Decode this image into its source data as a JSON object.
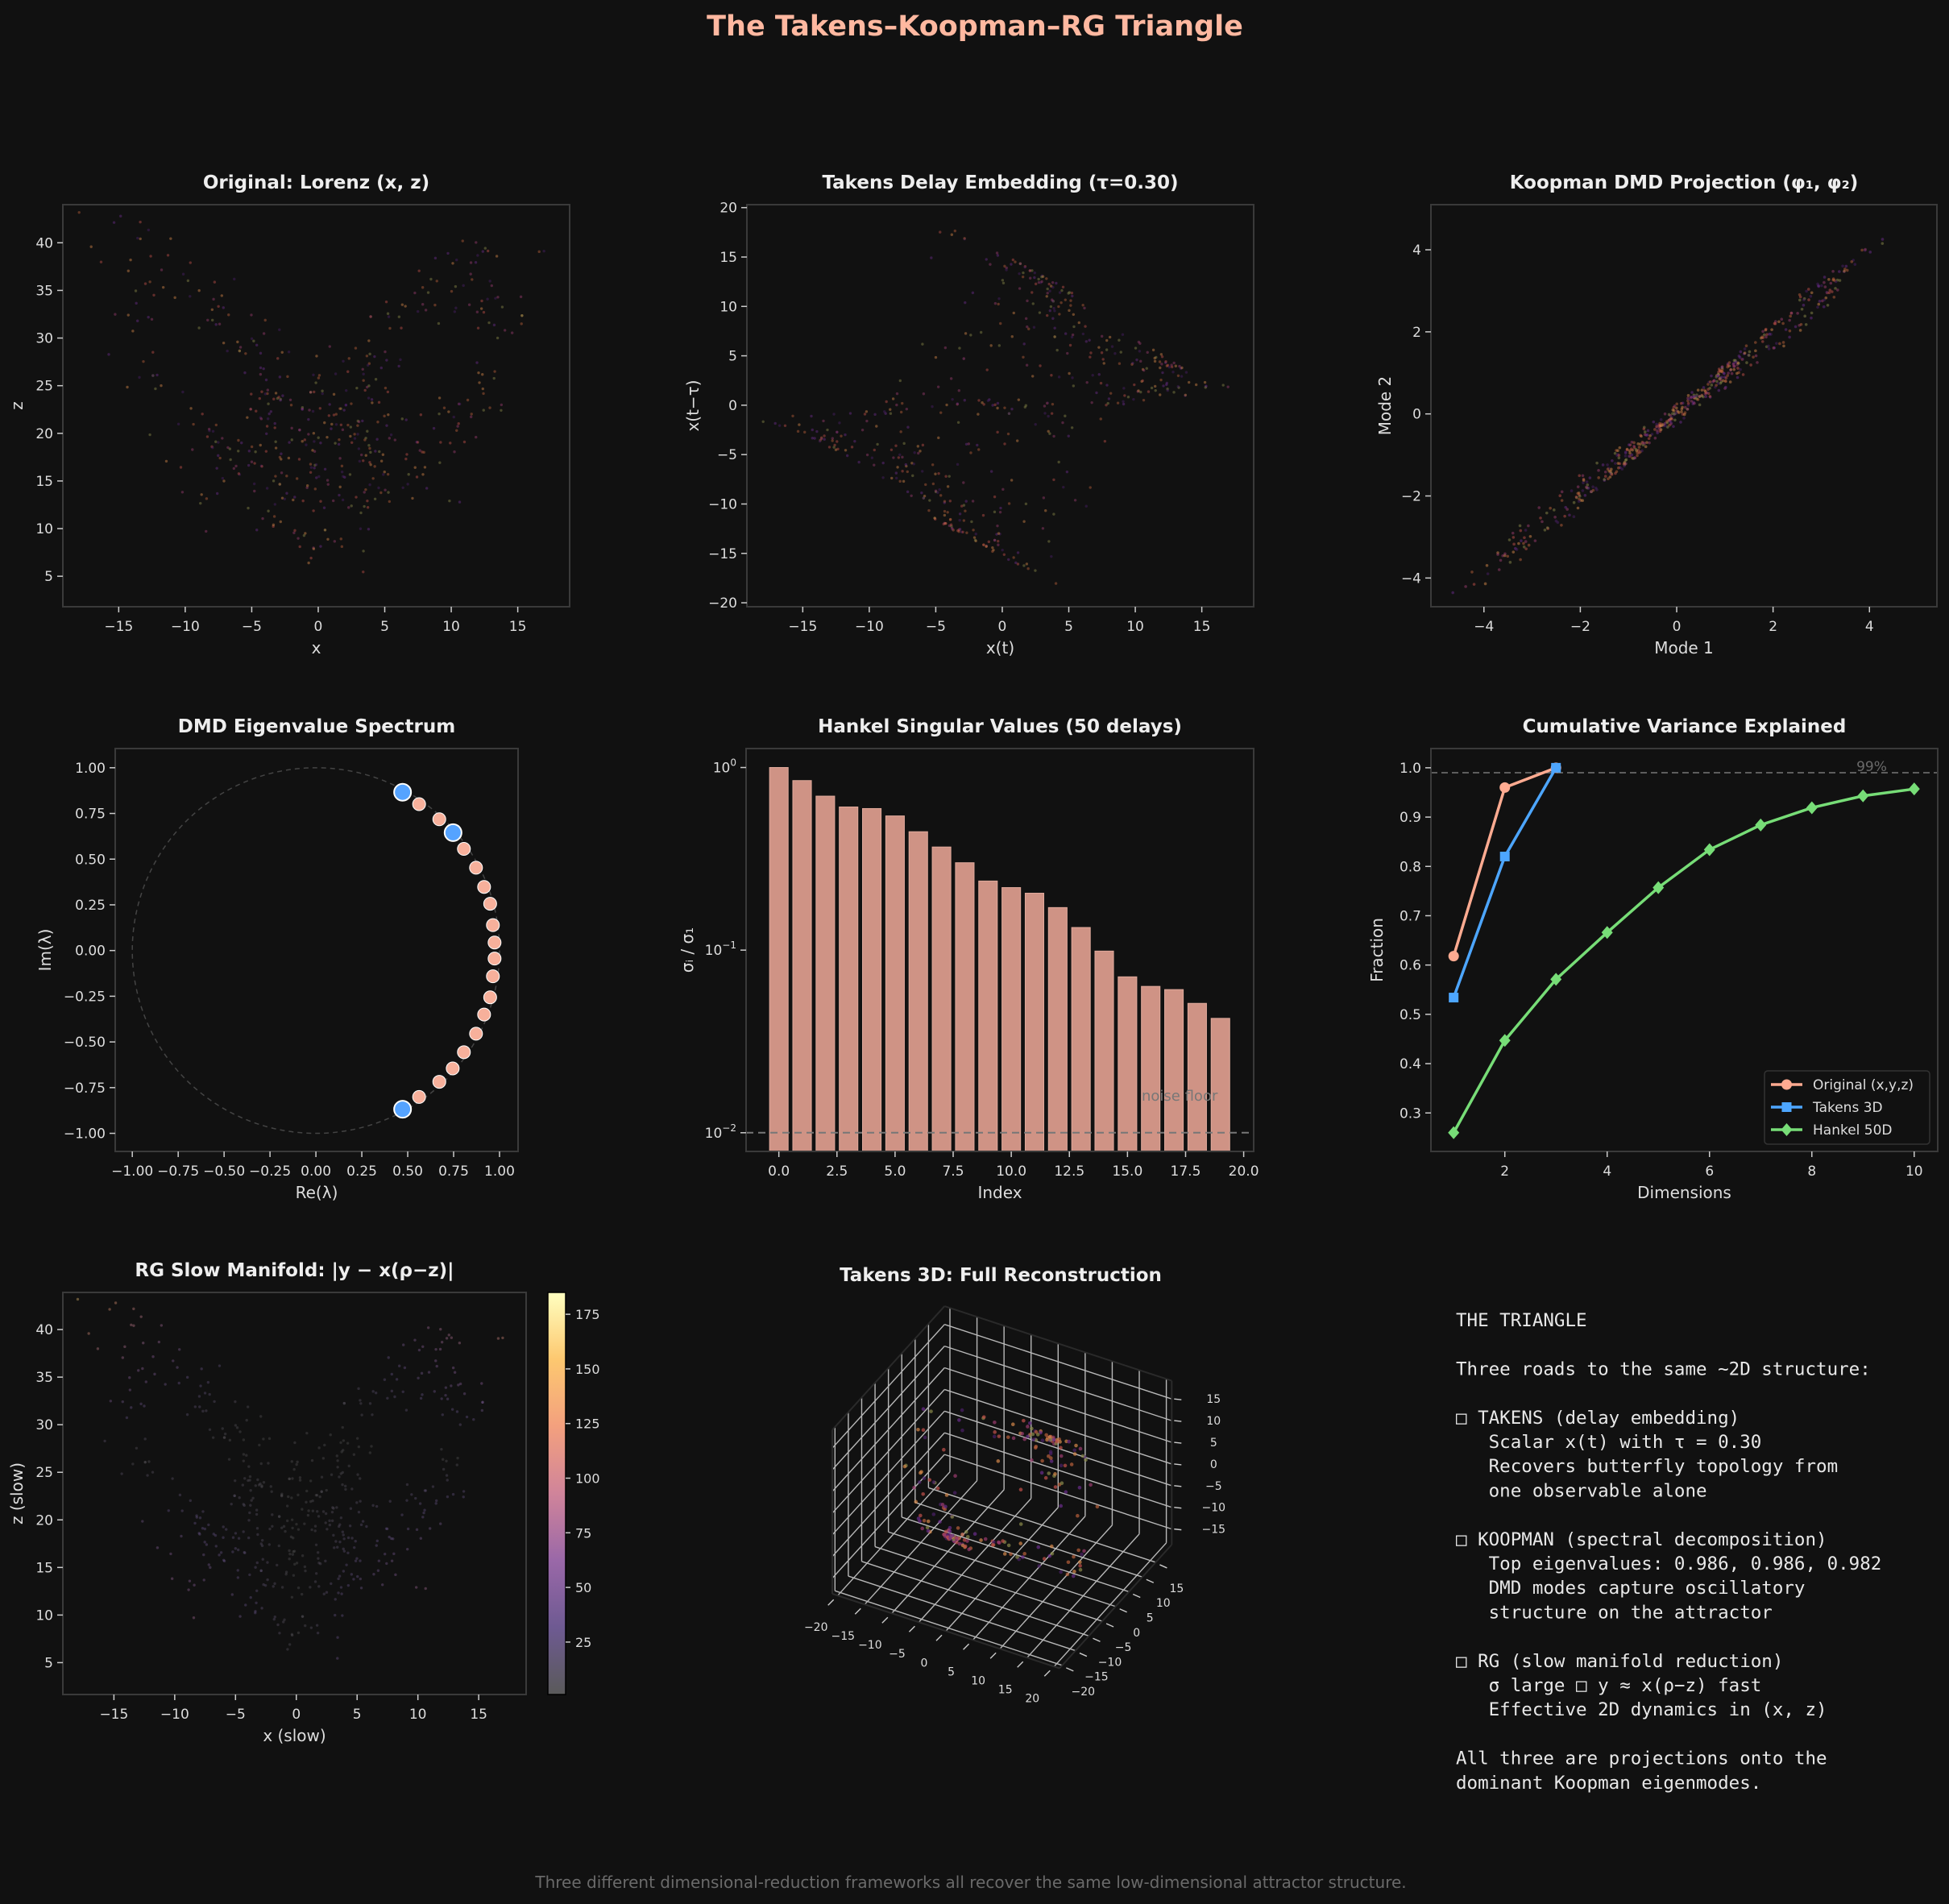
{
  "figure": {
    "title": "The Takens–Koopman–RG Triangle",
    "footer": "Three different dimensional-reduction frameworks all recover the same low-dimensional attractor structure.",
    "background": "#111111",
    "title_color": "#ffb8a0"
  },
  "chart_data": [
    {
      "id": "lorenz",
      "type": "scatter",
      "title": "Original: Lorenz (x, z)",
      "xlabel": "x",
      "ylabel": "z",
      "xlim": [
        -19.2,
        18.9
      ],
      "ylim": [
        1.8,
        44.0
      ],
      "xticks": [
        -15,
        -10,
        -5,
        0,
        5,
        10,
        15
      ],
      "xtick_labels": [
        "−15",
        "−10",
        "−5",
        "0",
        "5",
        "10",
        "15"
      ],
      "yticks": [
        5,
        10,
        15,
        20,
        25,
        30,
        35,
        40
      ],
      "ytick_labels": [
        "5",
        "10",
        "15",
        "20",
        "25",
        "30",
        "35",
        "40"
      ]
    },
    {
      "id": "takens",
      "type": "scatter",
      "title": "Takens Delay Embedding (τ=0.30)",
      "xlabel": "x(t)",
      "ylabel": "x(t−τ)",
      "xlim": [
        -19.2,
        18.9
      ],
      "ylim": [
        -20.4,
        20.3
      ],
      "xticks": [
        -15,
        -10,
        -5,
        0,
        5,
        10,
        15
      ],
      "xtick_labels": [
        "−15",
        "−10",
        "−5",
        "0",
        "5",
        "10",
        "15"
      ],
      "yticks": [
        -20,
        -15,
        -10,
        -5,
        0,
        5,
        10,
        15,
        20
      ],
      "ytick_labels": [
        "−20",
        "−15",
        "−10",
        "−5",
        "0",
        "5",
        "10",
        "15",
        "20"
      ]
    },
    {
      "id": "koopman",
      "type": "scatter",
      "title": "Koopman DMD Projection (φ₁, φ₂)",
      "xlabel": "Mode 1",
      "ylabel": "Mode 2",
      "xlim": [
        -5.1,
        5.4
      ],
      "ylim": [
        -4.7,
        5.1
      ],
      "xticks": [
        -4,
        -2,
        0,
        2,
        4
      ],
      "xtick_labels": [
        "−4",
        "−2",
        "0",
        "2",
        "4"
      ],
      "yticks": [
        -4,
        -2,
        0,
        2,
        4
      ],
      "ytick_labels": [
        "−4",
        "−2",
        "0",
        "2",
        "4"
      ]
    },
    {
      "id": "dmd",
      "type": "scatter",
      "title": "DMD Eigenvalue Spectrum",
      "xlabel": "Re(λ)",
      "ylabel": "Im(λ)",
      "xlim": [
        -1.093,
        1.101
      ],
      "ylim": [
        -1.099,
        1.105
      ],
      "xticks": [
        -1,
        -0.75,
        -0.5,
        -0.25,
        0,
        0.25,
        0.5,
        0.75,
        1
      ],
      "xtick_labels": [
        "−1.00",
        "−0.75",
        "−0.50",
        "−0.25",
        "0.00",
        "0.25",
        "0.50",
        "0.75",
        "1.00"
      ],
      "yticks": [
        -1,
        -0.75,
        -0.5,
        -0.25,
        0,
        0.25,
        0.5,
        0.75,
        1
      ],
      "ytick_labels": [
        "−1.00",
        "−0.75",
        "−0.50",
        "−0.25",
        "0.00",
        "0.25",
        "0.50",
        "0.75",
        "1.00"
      ],
      "unit_circle": true,
      "eigenvalues": [
        [
          0.562,
          0.801
        ],
        [
          0.672,
          0.718
        ],
        [
          0.806,
          0.556
        ],
        [
          0.872,
          0.453
        ],
        [
          0.916,
          0.348
        ],
        [
          0.949,
          0.256
        ],
        [
          0.964,
          0.139
        ],
        [
          0.973,
          0.044
        ],
        [
          0.973,
          -0.044
        ],
        [
          0.964,
          -0.141
        ],
        [
          0.949,
          -0.256
        ],
        [
          0.916,
          -0.35
        ],
        [
          0.872,
          -0.455
        ],
        [
          0.806,
          -0.556
        ],
        [
          0.745,
          -0.645
        ],
        [
          0.672,
          -0.718
        ],
        [
          0.562,
          -0.801
        ]
      ],
      "highlighted": [
        [
          0.472,
          0.866
        ],
        [
          0.747,
          0.645
        ],
        [
          0.472,
          -0.868
        ]
      ],
      "colors": {
        "eigen": "#f7b09b",
        "highlight": "#55a3ff"
      }
    },
    {
      "id": "hankel",
      "type": "bar",
      "title": "Hankel Singular Values (50 delays)",
      "xlabel": "Index",
      "ylabel": "σᵢ / σ₁",
      "yscale": "log",
      "xlim": [
        -1.41,
        20.43
      ],
      "ylim": [
        0.0079,
        1.27
      ],
      "xticks": [
        0,
        2.5,
        5,
        7.5,
        10,
        12.5,
        15,
        17.5,
        20
      ],
      "xtick_labels": [
        "0.0",
        "2.5",
        "5.0",
        "7.5",
        "10.0",
        "12.5",
        "15.0",
        "17.5",
        "20.0"
      ],
      "yticks": [
        0.01,
        0.1,
        1
      ],
      "ytick_labels": [
        [
          "10",
          "−2"
        ],
        [
          "10",
          "−1"
        ],
        [
          "10",
          "0"
        ]
      ],
      "categories": [
        0,
        1,
        2,
        3,
        4,
        5,
        6,
        7,
        8,
        9,
        10,
        11,
        12,
        13,
        14,
        15,
        16,
        17,
        18,
        19
      ],
      "values": [
        1.0,
        0.848,
        0.697,
        0.608,
        0.596,
        0.543,
        0.445,
        0.367,
        0.301,
        0.239,
        0.22,
        0.205,
        0.171,
        0.133,
        0.0988,
        0.0714,
        0.0633,
        0.0608,
        0.0511,
        0.0423
      ],
      "noise_floor": 0.01,
      "noise_floor_label": "noise floor",
      "color": "#cf9385"
    },
    {
      "id": "cumvar",
      "type": "line",
      "title": "Cumulative Variance Explained",
      "xlabel": "Dimensions",
      "ylabel": "Fraction",
      "xlim": [
        0.556,
        10.46
      ],
      "ylim": [
        0.222,
        1.039
      ],
      "xticks": [
        2,
        4,
        6,
        8,
        10
      ],
      "xtick_labels": [
        "2",
        "4",
        "6",
        "8",
        "10"
      ],
      "yticks": [
        0.3,
        0.4,
        0.5,
        0.6,
        0.7,
        0.8,
        0.9,
        1.0
      ],
      "ytick_labels": [
        "0.3",
        "0.4",
        "0.5",
        "0.6",
        "0.7",
        "0.8",
        "0.9",
        "1.0"
      ],
      "threshold": 0.99,
      "threshold_label": "99%",
      "legend": "lower-right",
      "series": [
        {
          "name": "Original (x,y,z)",
          "marker": "circle",
          "color": "#ffab91",
          "x": [
            1,
            2,
            3
          ],
          "values": [
            0.618,
            0.96,
            1.0
          ]
        },
        {
          "name": "Takens 3D",
          "marker": "square",
          "color": "#4da6ff",
          "x": [
            1,
            2,
            3
          ],
          "values": [
            0.534,
            0.82,
            1.0
          ]
        },
        {
          "name": "Hankel 50D",
          "marker": "diamond",
          "color": "#77dd77",
          "x": [
            1,
            2,
            3,
            4,
            5,
            6,
            7,
            8,
            9,
            10
          ],
          "values": [
            0.26,
            0.447,
            0.571,
            0.666,
            0.757,
            0.834,
            0.884,
            0.919,
            0.943,
            0.957
          ]
        }
      ]
    },
    {
      "id": "rg",
      "type": "scatter",
      "title": "RG Slow Manifold: |y − x(ρ−z)|",
      "xlabel": "x (slow)",
      "ylabel": "z (slow)",
      "xlim": [
        -19.2,
        18.9
      ],
      "ylim": [
        1.65,
        43.9
      ],
      "xticks": [
        -15,
        -10,
        -5,
        0,
        5,
        10,
        15
      ],
      "xtick_labels": [
        "−15",
        "−10",
        "−5",
        "0",
        "5",
        "10",
        "15"
      ],
      "yticks": [
        5,
        10,
        15,
        20,
        25,
        30,
        35,
        40
      ],
      "ytick_labels": [
        "5",
        "10",
        "15",
        "20",
        "25",
        "30",
        "35",
        "40"
      ],
      "colorbar": {
        "range": [
          1,
          185
        ],
        "ticks": [
          25,
          50,
          75,
          100,
          125,
          150,
          175
        ],
        "tick_labels": [
          "25",
          "50",
          "75",
          "100",
          "125",
          "150",
          "175"
        ],
        "colormap": [
          "#5a5a5a",
          "#6e5a92",
          "#9a68a8",
          "#d0849a",
          "#f3a07e",
          "#fdc870",
          "#ffffc0"
        ]
      }
    },
    {
      "id": "takens3d",
      "type": "scatter3d",
      "title": "Takens 3D: Full Reconstruction",
      "xlim": [
        -21,
        21
      ],
      "ylim": [
        -21,
        21
      ],
      "zlim": [
        -18.6,
        19.2
      ],
      "xticks": [
        -20,
        -15,
        -10,
        -5,
        0,
        5,
        10,
        15,
        20
      ],
      "xtick_labels": [
        "−20",
        "−15",
        "−10",
        "−5",
        "0",
        "5",
        "10",
        "15",
        "20"
      ],
      "yticks": [
        -20,
        -15,
        -10,
        -5,
        0,
        5,
        10,
        15
      ],
      "ytick_labels": [
        "−20",
        "−15",
        "−10",
        "−5",
        "0",
        "5",
        "10",
        "15"
      ],
      "zticks": [
        -15,
        -10,
        -5,
        0,
        5,
        10,
        15
      ],
      "ztick_labels": [
        "−15",
        "−10",
        "−5",
        "0",
        "5",
        "10",
        "15"
      ]
    }
  ],
  "summary_panel": {
    "lines": [
      "THE TRIANGLE",
      "",
      "Three roads to the same ~2D structure:",
      "",
      "□ TAKENS (delay embedding)",
      "   Scalar x(t) with τ = 0.30",
      "   Recovers butterfly topology from",
      "   one observable alone",
      "",
      "□ KOOPMAN (spectral decomposition)",
      "   Top eigenvalues: 0.986, 0.986, 0.982",
      "   DMD modes capture oscillatory",
      "   structure on the attractor",
      "",
      "□ RG (slow manifold reduction)",
      "   σ large □ y ≈ x(ρ−z) fast",
      "   Effective 2D dynamics in (x, z)",
      "",
      "All three are projections onto the",
      "dominant Koopman eigenmodes."
    ]
  }
}
